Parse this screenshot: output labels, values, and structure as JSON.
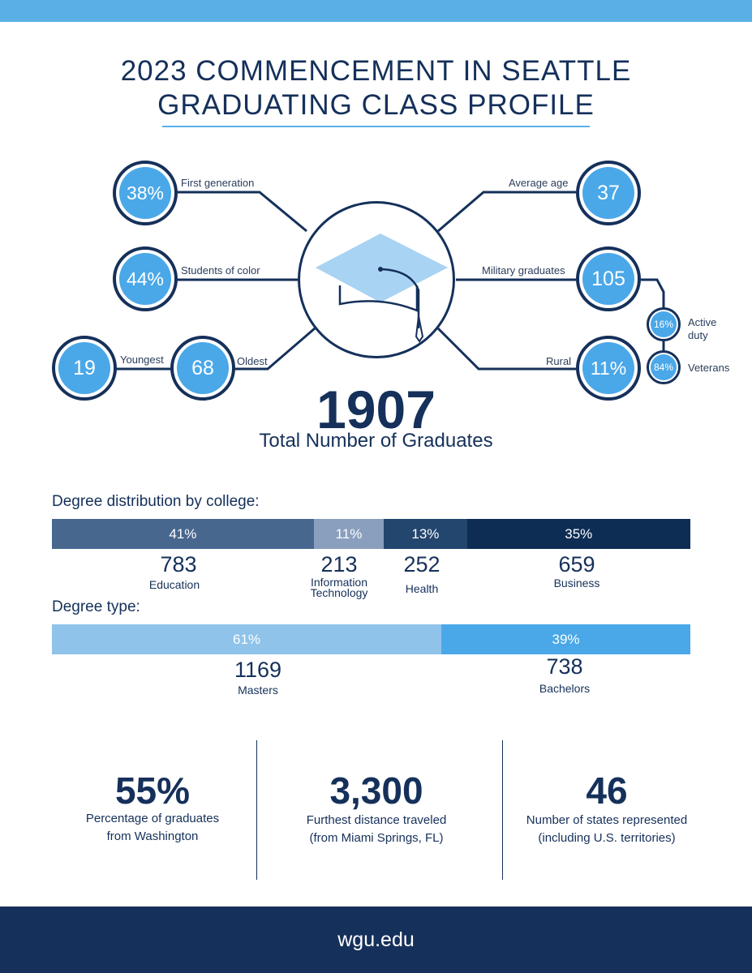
{
  "header": {
    "title_line1": "2023 COMMENCEMENT IN SEATTLE",
    "title_line2": "GRADUATING CLASS PROFILE"
  },
  "stats_left": [
    {
      "value": "38%",
      "label": "First generation"
    },
    {
      "value": "44%",
      "label": "Students of color"
    }
  ],
  "age": {
    "youngest_value": "19",
    "youngest_label": "Youngest",
    "oldest_value": "68",
    "oldest_label": "Oldest"
  },
  "stats_right": [
    {
      "value": "37",
      "label": "Average age"
    },
    {
      "value": "105",
      "label": "Military graduates"
    },
    {
      "value": "11%",
      "label": "Rural"
    }
  ],
  "military_breakdown": [
    {
      "value": "16%",
      "label": "Active duty"
    },
    {
      "value": "84%",
      "label": "Veterans"
    }
  ],
  "total": {
    "value": "1907",
    "label": "Total Number of Graduates"
  },
  "college_dist": {
    "heading": "Degree distribution by college:",
    "segments": [
      {
        "pct": "41%",
        "count": "783",
        "name": "Education",
        "color": "#47678f",
        "share": 41
      },
      {
        "pct": "11%",
        "count": "213",
        "name_line1": "Information",
        "name_line2": "Technology",
        "color": "#8a9fbe",
        "share": 11
      },
      {
        "pct": "13%",
        "count": "252",
        "name": "Health",
        "color": "#23466f",
        "share": 13
      },
      {
        "pct": "35%",
        "count": "659",
        "name": "Business",
        "color": "#0e2d55",
        "share": 35
      }
    ]
  },
  "degree_type": {
    "heading": "Degree type:",
    "segments": [
      {
        "pct": "61%",
        "count": "1169",
        "name": "Masters",
        "color": "#8fc3ea",
        "share": 61
      },
      {
        "pct": "39%",
        "count": "738",
        "name": "Bachelors",
        "color": "#4aa8e8",
        "share": 39
      }
    ]
  },
  "bottom_stats": [
    {
      "value": "55%",
      "line1": "Percentage of graduates",
      "line2": "from Washington"
    },
    {
      "value": "3,300",
      "line1": "Furthest distance traveled",
      "line2": "(from Miami Springs, FL)"
    },
    {
      "value": "46",
      "line1": "Number of states represented",
      "line2": "(including U.S. territories)"
    }
  ],
  "footer": {
    "url": "wgu.edu"
  },
  "colors": {
    "navy": "#15305a",
    "accent": "#4aa8e8",
    "topbar": "#5ab0e6"
  },
  "icons": {
    "center": "graduation-cap-icon"
  }
}
